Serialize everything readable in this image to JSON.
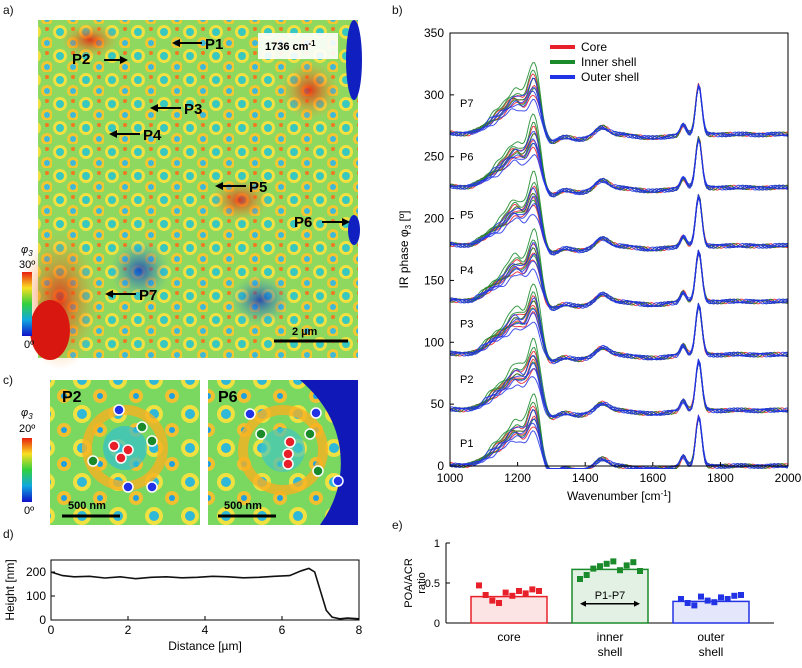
{
  "panel_labels": {
    "a": "a)",
    "b": "b)",
    "c": "c)",
    "d": "d)",
    "e": "e)"
  },
  "panel_a": {
    "wavenumber_badge": "1736 cm",
    "wavenumber_badge_sup": "-1",
    "points": [
      "P1",
      "P2",
      "P3",
      "P4",
      "P5",
      "P6",
      "P7"
    ],
    "colorbar_symbol": "φ",
    "colorbar_symbol_sub": "3",
    "colorbar_max": "30º",
    "colorbar_min": "0º",
    "scalebar": "2 µm"
  },
  "panel_c": {
    "left_label": "P2",
    "right_label": "P6",
    "colorbar_symbol": "φ",
    "colorbar_symbol_sub": "3",
    "colorbar_max": "20º",
    "colorbar_min": "0º",
    "scalebar_left": "500 nm",
    "scalebar_right": "500 nm"
  },
  "chart_data": [
    {
      "type": "line",
      "panel": "b",
      "xlabel": "Wavenumber [cm",
      "xlabel_sup": "-1",
      "xlabel_end": "]",
      "ylabel": "IR phase φ",
      "ylabel_sub": "3",
      "ylabel_end": " [º]",
      "xlim": [
        1000,
        2000
      ],
      "ylim": [
        0,
        350
      ],
      "xticks": [
        "1000",
        "1200",
        "1400",
        "1600",
        "1800",
        "2000"
      ],
      "yticks": [
        "0",
        "50",
        "100",
        "150",
        "200",
        "250",
        "300",
        "350"
      ],
      "legend": [
        {
          "name": "Core",
          "color": "#e8202a"
        },
        {
          "name": "Inner shell",
          "color": "#1a8a2a"
        },
        {
          "name": "Outer shell",
          "color": "#2233e6"
        }
      ],
      "legend_position": "top-center",
      "traces": [
        {
          "name": "P1",
          "offset": 0
        },
        {
          "name": "P2",
          "offset": 45
        },
        {
          "name": "P3",
          "offset": 90
        },
        {
          "name": "P4",
          "offset": 133
        },
        {
          "name": "P5",
          "offset": 178
        },
        {
          "name": "P6",
          "offset": 225
        },
        {
          "name": "P7",
          "offset": 268
        }
      ]
    },
    {
      "type": "line",
      "panel": "d",
      "xlabel": "Distance [µm]",
      "ylabel": "Height [nm]",
      "xlim": [
        0,
        8
      ],
      "ylim": [
        0,
        250
      ],
      "xticks": [
        "0",
        "2",
        "4",
        "6",
        "8"
      ],
      "yticks": [
        "0",
        "100",
        "200"
      ],
      "x": [
        0,
        0.3,
        0.6,
        1,
        1.4,
        1.8,
        2.2,
        2.6,
        3,
        3.4,
        3.8,
        4.2,
        4.6,
        5,
        5.4,
        5.8,
        6.2,
        6.5,
        6.7,
        6.85,
        7,
        7.15,
        7.3,
        7.5,
        7.7,
        8
      ],
      "y": [
        200,
        185,
        180,
        182,
        175,
        180,
        172,
        178,
        180,
        176,
        178,
        182,
        180,
        176,
        178,
        182,
        185,
        205,
        215,
        200,
        120,
        40,
        12,
        5,
        8,
        5
      ]
    },
    {
      "type": "bar",
      "panel": "e",
      "ylabel": "POA/ACR\nratio",
      "ylim": [
        0,
        1
      ],
      "yticks": [
        "0",
        "0.5",
        "1"
      ],
      "categories": [
        "core",
        "inner\nshell",
        "outer\nshell"
      ],
      "values": [
        0.33,
        0.67,
        0.27
      ],
      "colors": [
        "#e8202a",
        "#1a8a2a",
        "#2233e6"
      ],
      "points": [
        [
          0.47,
          0.35,
          0.28,
          0.25,
          0.38,
          0.34,
          0.4,
          0.37,
          0.42,
          0.4
        ],
        [
          0.55,
          0.6,
          0.68,
          0.71,
          0.74,
          0.77,
          0.66,
          0.72,
          0.76,
          0.65
        ],
        [
          0.3,
          0.25,
          0.22,
          0.33,
          0.28,
          0.26,
          0.32,
          0.3,
          0.34,
          0.35
        ]
      ],
      "annotation": "P1-P7"
    }
  ]
}
